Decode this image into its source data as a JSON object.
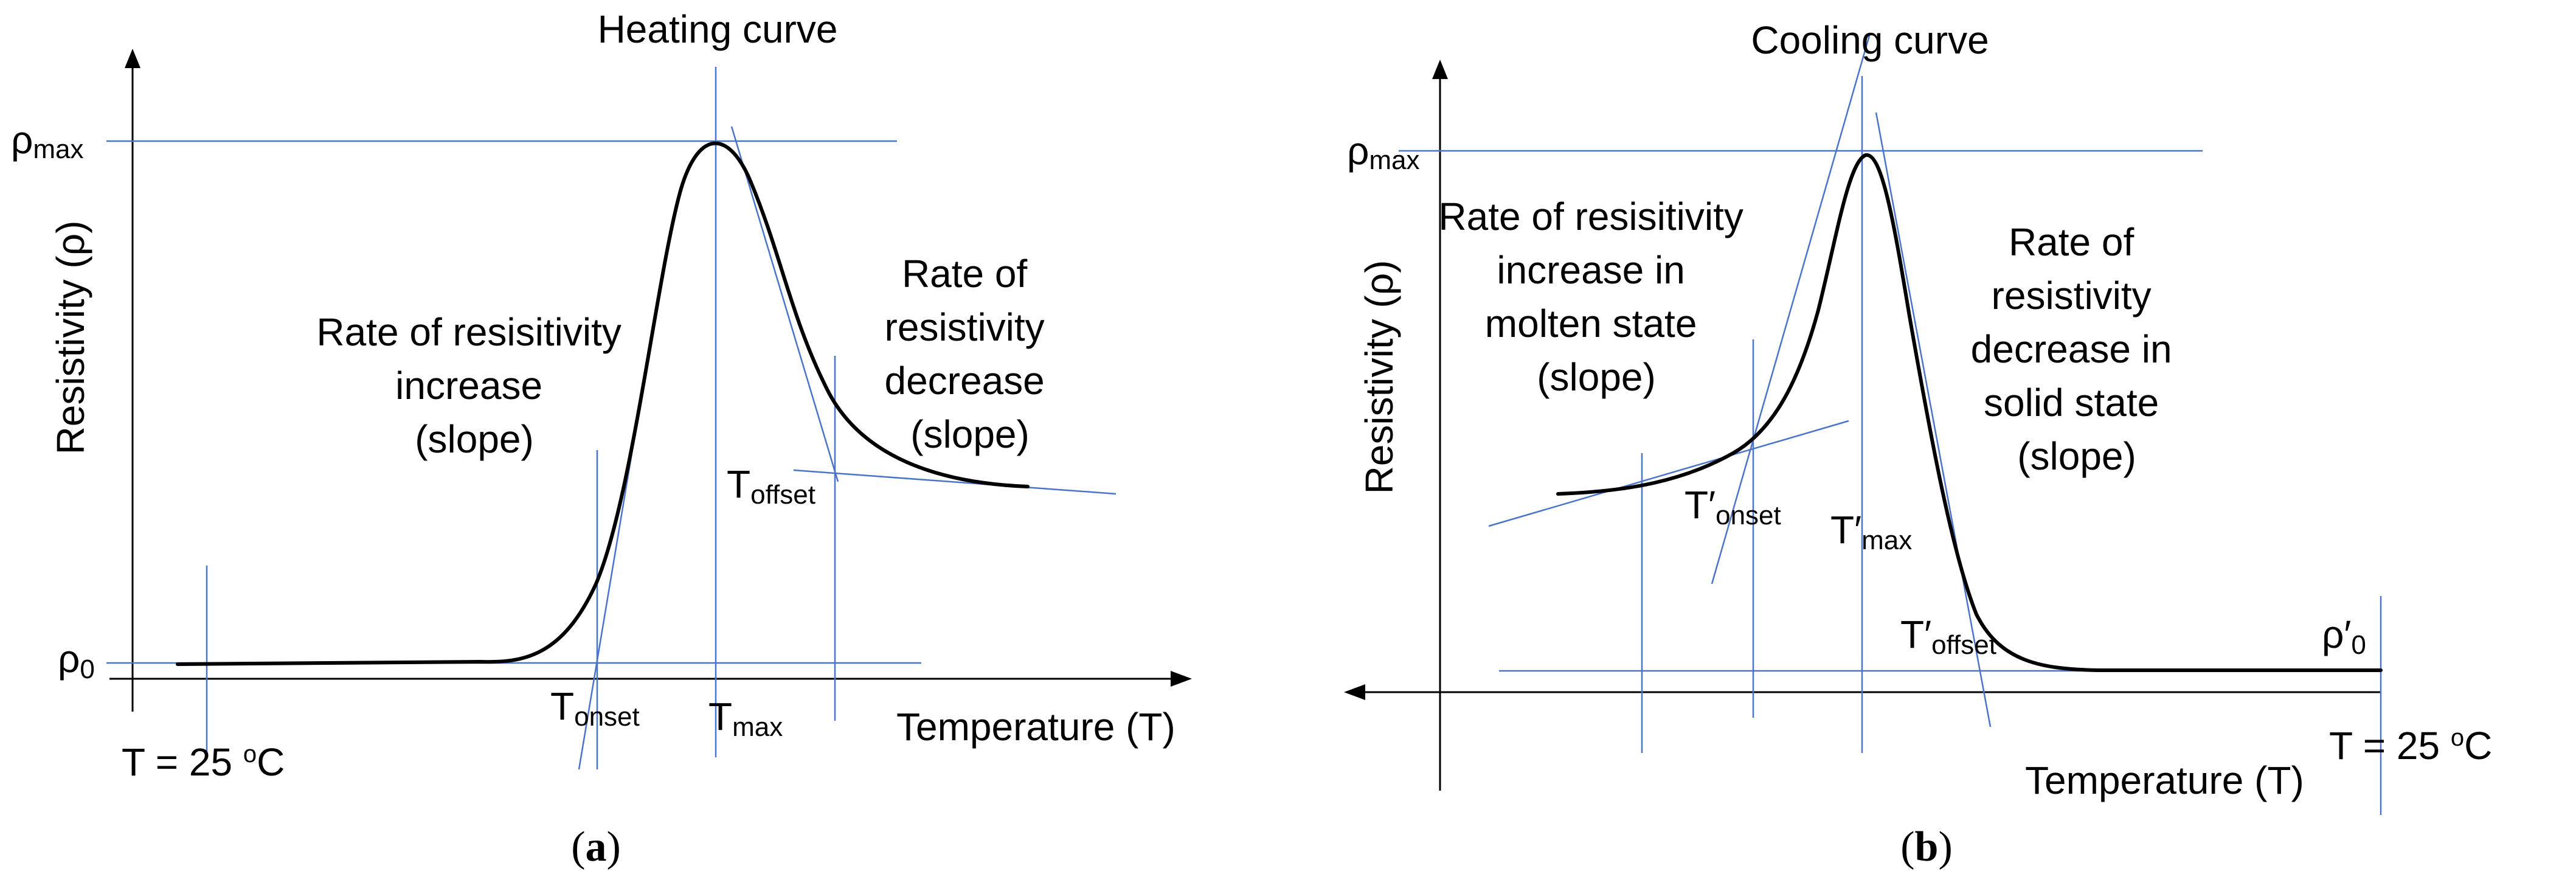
{
  "panel_a": {
    "title": "Heating curve",
    "y_axis_label": "Resistivity (ρ)",
    "x_axis_label": "Temperature (T)",
    "rho_max": {
      "base": "ρ",
      "sub": "max"
    },
    "rho_0": {
      "base": "ρ",
      "sub": "0"
    },
    "increase_label": [
      "Rate of resisitivity",
      "increase",
      "(slope)"
    ],
    "decrease_label": [
      "Rate of",
      "resistivity",
      "decrease",
      "(slope)"
    ],
    "t_onset": {
      "base": "T",
      "sub": "onset"
    },
    "t_max": {
      "base": "T",
      "sub": "max"
    },
    "t_offset": {
      "base": "T",
      "sub": "offset"
    },
    "room_temp": {
      "prefix": "T = 25 ",
      "sup": "o",
      "suffix": "C"
    },
    "caption": {
      "open": "(",
      "letter": "a",
      "close": ")"
    }
  },
  "panel_b": {
    "title": "Cooling curve",
    "y_axis_label": "Resistivity (ρ)",
    "x_axis_label": "Temperature (T)",
    "rho_max": {
      "base": "ρ",
      "sub": "max"
    },
    "rho_0": {
      "base": "ρ′",
      "sub": "0"
    },
    "increase_label": [
      "Rate of resisitivity",
      "increase in",
      "molten state",
      "(slope)"
    ],
    "decrease_label": [
      "Rate of",
      "resistivity",
      "decrease in",
      "solid state",
      "(slope)"
    ],
    "t_onset": {
      "base": "T′",
      "sub": "onset"
    },
    "t_max": {
      "base": "T′",
      "sub": "max"
    },
    "t_offset": {
      "base": "T′",
      "sub": "offset"
    },
    "room_temp": {
      "prefix": "T = 25 ",
      "sup": "o",
      "suffix": "C"
    },
    "caption": {
      "open": "(",
      "letter": "b",
      "close": ")"
    }
  },
  "colors": {
    "guide_lines": "#4a74c9",
    "curve": "#000000"
  }
}
